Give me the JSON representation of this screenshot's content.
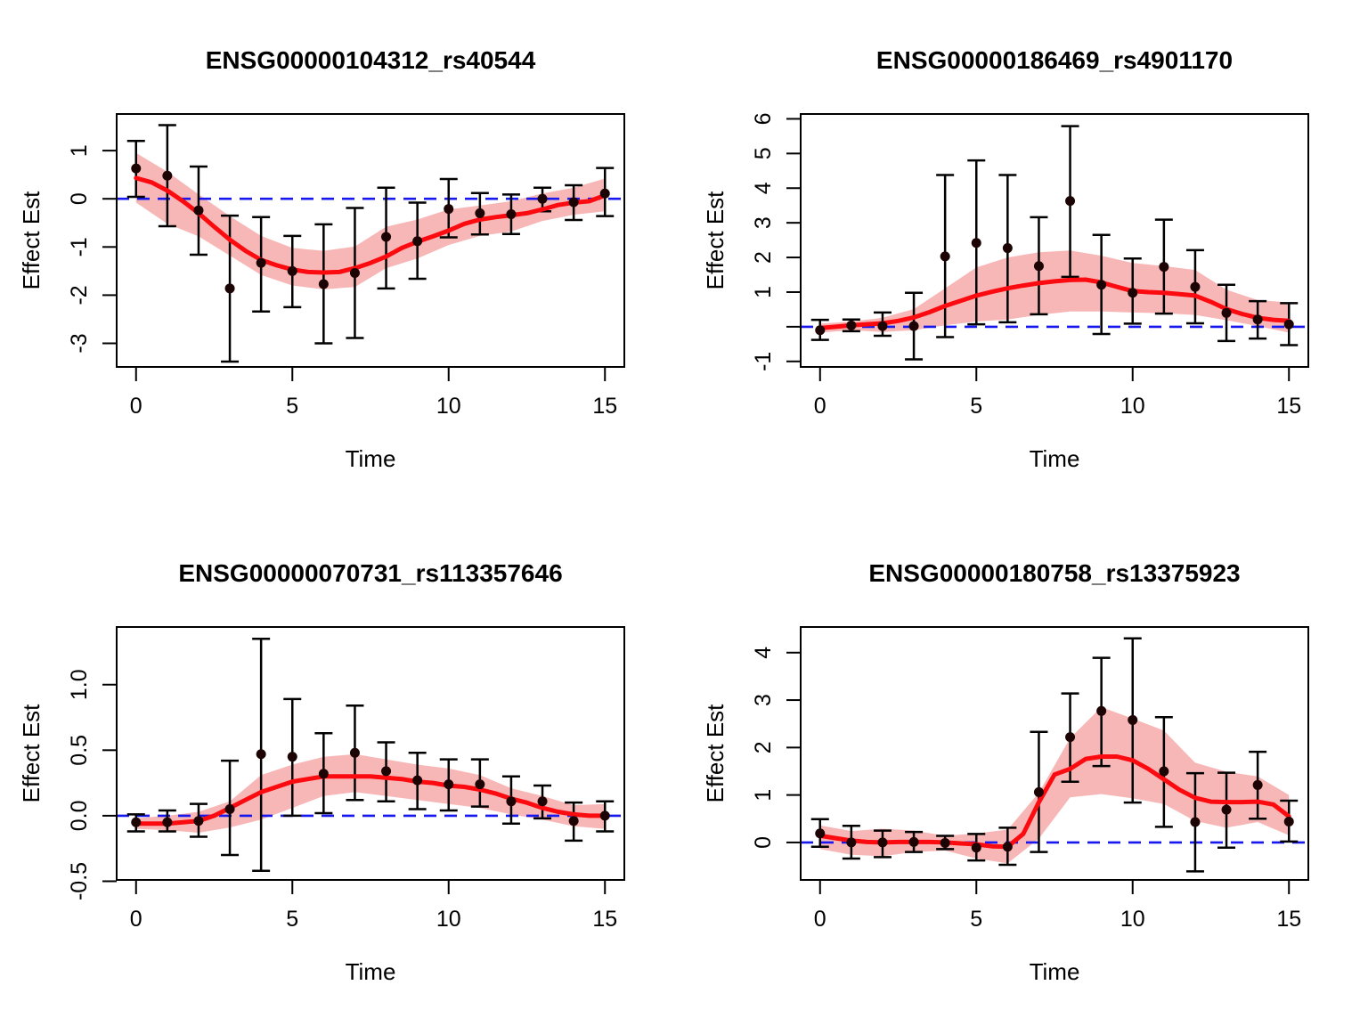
{
  "figure": {
    "background": "#FFFFFF",
    "layout": "2x2 panel grid of effect-estimate time-course plots",
    "shared_xlabel": "Time",
    "shared_ylabel": "Effect Est",
    "colors": {
      "smooth_line": "#FB0A10",
      "confidence_band": "#F8B7B7",
      "zero_reference_line": "#1717EF",
      "points": "#1D0404",
      "error_bars": "#000000",
      "frame": "#000000",
      "text": "#000000"
    }
  },
  "chart_data": [
    {
      "type": "line",
      "title": "ENSG00000104312_rs40544",
      "xlabel": "Time",
      "ylabel": "Effect Est",
      "legend_position": "none",
      "grid": false,
      "x": [
        0,
        1,
        2,
        3,
        4,
        5,
        6,
        7,
        8,
        9,
        10,
        11,
        12,
        13,
        14,
        15
      ],
      "estimates": [
        0.63,
        0.48,
        -0.24,
        -1.86,
        -1.33,
        -1.5,
        -1.77,
        -1.54,
        -0.79,
        -0.88,
        -0.21,
        -0.3,
        -0.32,
        0.0,
        -0.07,
        0.11
      ],
      "ci_lower": [
        0.04,
        -0.57,
        -1.16,
        -3.38,
        -2.34,
        -2.25,
        -3.0,
        -2.89,
        -1.86,
        -1.66,
        -0.8,
        -0.74,
        -0.73,
        -0.26,
        -0.44,
        -0.36
      ],
      "ci_upper": [
        1.2,
        1.53,
        0.67,
        -0.35,
        -0.38,
        -0.77,
        -0.53,
        -0.19,
        0.23,
        -0.08,
        0.41,
        0.12,
        0.09,
        0.23,
        0.28,
        0.64
      ],
      "band_upper": [
        0.95,
        0.56,
        0.09,
        -0.36,
        -0.77,
        -1.02,
        -1.08,
        -0.99,
        -0.58,
        -0.43,
        -0.22,
        -0.14,
        -0.05,
        0.11,
        0.23,
        0.42
      ],
      "band_lower": [
        -0.08,
        -0.52,
        -0.78,
        -1.18,
        -1.58,
        -1.8,
        -1.88,
        -1.83,
        -1.44,
        -1.24,
        -0.96,
        -0.77,
        -0.68,
        -0.46,
        -0.33,
        -0.26
      ],
      "smooth_step": 0.5,
      "smooth_y": [
        0.43,
        0.34,
        0.17,
        -0.05,
        -0.3,
        -0.58,
        -0.85,
        -1.08,
        -1.27,
        -1.38,
        -1.47,
        -1.52,
        -1.53,
        -1.52,
        -1.44,
        -1.33,
        -1.2,
        -1.02,
        -0.89,
        -0.78,
        -0.66,
        -0.52,
        -0.43,
        -0.38,
        -0.34,
        -0.3,
        -0.22,
        -0.13,
        -0.08,
        -0.05,
        0.07
      ],
      "xlim": [
        -0.62,
        15.62
      ],
      "ylim": [
        -3.49,
        1.76
      ],
      "x_ticks": [
        0,
        5,
        10,
        15
      ],
      "x_tick_labels": [
        "0",
        "5",
        "10",
        "15"
      ],
      "y_ticks": [
        -3,
        -2,
        -1,
        0,
        1
      ],
      "y_tick_labels": [
        "-3",
        "-2",
        "-1",
        "0",
        "1"
      ],
      "zero_line_y": 0
    },
    {
      "type": "line",
      "title": "ENSG00000186469_rs4901170",
      "xlabel": "Time",
      "ylabel": "Effect Est",
      "legend_position": "none",
      "grid": false,
      "x": [
        0,
        1,
        2,
        3,
        4,
        5,
        6,
        7,
        8,
        9,
        10,
        11,
        12,
        13,
        14,
        15
      ],
      "estimates": [
        -0.1,
        0.04,
        0.02,
        0.02,
        2.03,
        2.42,
        2.27,
        1.75,
        3.63,
        1.21,
        0.98,
        1.73,
        1.15,
        0.4,
        0.21,
        0.07
      ],
      "ci_lower": [
        -0.38,
        -0.13,
        -0.26,
        -0.94,
        -0.3,
        0.07,
        0.13,
        0.36,
        1.44,
        -0.21,
        0.09,
        0.38,
        0.1,
        -0.41,
        -0.34,
        -0.53
      ],
      "ci_upper": [
        0.2,
        0.21,
        0.41,
        0.98,
        4.38,
        4.8,
        4.38,
        3.16,
        5.79,
        2.65,
        1.97,
        3.09,
        2.21,
        1.21,
        0.74,
        0.68
      ],
      "band_upper": [
        0.09,
        0.15,
        0.26,
        0.51,
        1.11,
        1.71,
        2.0,
        2.15,
        2.2,
        2.05,
        1.84,
        1.75,
        1.64,
        1.07,
        0.77,
        0.7
      ],
      "band_lower": [
        -0.17,
        -0.1,
        -0.15,
        -0.1,
        0.04,
        0.15,
        0.21,
        0.34,
        0.44,
        0.44,
        0.41,
        0.39,
        0.34,
        0.19,
        0.02,
        -0.17
      ],
      "smooth_step": 0.5,
      "smooth_y": [
        -0.04,
        0.0,
        0.04,
        0.07,
        0.1,
        0.17,
        0.27,
        0.42,
        0.6,
        0.75,
        0.9,
        1.01,
        1.11,
        1.19,
        1.26,
        1.31,
        1.35,
        1.36,
        1.28,
        1.15,
        1.03,
        1.0,
        0.98,
        0.94,
        0.9,
        0.72,
        0.51,
        0.37,
        0.26,
        0.2,
        0.17
      ],
      "xlim": [
        -0.62,
        15.62
      ],
      "ylim": [
        -1.16,
        6.14
      ],
      "x_ticks": [
        0,
        5,
        10,
        15
      ],
      "x_tick_labels": [
        "0",
        "5",
        "10",
        "15"
      ],
      "y_ticks": [
        -1,
        0,
        1,
        2,
        3,
        4,
        5,
        6
      ],
      "y_tick_labels": [
        "-1",
        "",
        "1",
        "2",
        "3",
        "4",
        "5",
        "6"
      ],
      "zero_line_y": 0
    },
    {
      "type": "line",
      "title": "ENSG00000070731_rs113357646",
      "xlabel": "Time",
      "ylabel": "Effect Est",
      "legend_position": "none",
      "grid": false,
      "x": [
        0,
        1,
        2,
        3,
        4,
        5,
        6,
        7,
        8,
        9,
        10,
        11,
        12,
        13,
        14,
        15
      ],
      "estimates": [
        -0.05,
        -0.05,
        -0.04,
        0.05,
        0.47,
        0.45,
        0.32,
        0.48,
        0.34,
        0.27,
        0.24,
        0.24,
        0.11,
        0.11,
        -0.04,
        0.0
      ],
      "ci_lower": [
        -0.12,
        -0.12,
        -0.16,
        -0.3,
        -0.42,
        0.0,
        0.02,
        0.12,
        0.11,
        0.05,
        0.04,
        0.07,
        -0.06,
        -0.02,
        -0.19,
        -0.12
      ],
      "ci_upper": [
        0.01,
        0.04,
        0.09,
        0.42,
        1.35,
        0.89,
        0.63,
        0.84,
        0.56,
        0.48,
        0.43,
        0.43,
        0.3,
        0.23,
        0.1,
        0.11
      ],
      "band_upper": [
        -0.02,
        0.0,
        0.03,
        0.11,
        0.31,
        0.39,
        0.45,
        0.47,
        0.43,
        0.39,
        0.36,
        0.31,
        0.21,
        0.15,
        0.08,
        0.09
      ],
      "band_lower": [
        -0.1,
        -0.11,
        -0.13,
        -0.09,
        -0.03,
        0.06,
        0.15,
        0.18,
        0.15,
        0.12,
        0.09,
        0.06,
        0.01,
        -0.03,
        -0.08,
        -0.1
      ],
      "smooth_step": 0.5,
      "smooth_y": [
        -0.06,
        -0.06,
        -0.06,
        -0.05,
        -0.04,
        0.0,
        0.06,
        0.12,
        0.18,
        0.22,
        0.26,
        0.28,
        0.3,
        0.3,
        0.3,
        0.3,
        0.29,
        0.28,
        0.26,
        0.25,
        0.23,
        0.22,
        0.2,
        0.17,
        0.13,
        0.1,
        0.06,
        0.03,
        0.01,
        0.0,
        0.0
      ],
      "xlim": [
        -0.62,
        15.62
      ],
      "ylim": [
        -0.49,
        1.44
      ],
      "x_ticks": [
        0,
        5,
        10,
        15
      ],
      "x_tick_labels": [
        "0",
        "5",
        "10",
        "15"
      ],
      "y_ticks": [
        -0.5,
        0.0,
        0.5,
        1.0
      ],
      "y_tick_labels": [
        "-0.5",
        "0.0",
        "0.5",
        "1.0"
      ],
      "zero_line_y": 0
    },
    {
      "type": "line",
      "title": "ENSG00000180758_rs13375923",
      "xlabel": "Time",
      "ylabel": "Effect Est",
      "legend_position": "none",
      "grid": false,
      "x": [
        0,
        1,
        2,
        3,
        4,
        5,
        6,
        7,
        8,
        9,
        10,
        11,
        12,
        13,
        14,
        15
      ],
      "estimates": [
        0.19,
        0.0,
        0.0,
        0.01,
        -0.01,
        -0.11,
        -0.09,
        1.06,
        2.22,
        2.77,
        2.58,
        1.5,
        0.43,
        0.69,
        1.21,
        0.44
      ],
      "ci_lower": [
        -0.09,
        -0.34,
        -0.31,
        -0.2,
        -0.14,
        -0.38,
        -0.47,
        -0.2,
        1.28,
        1.61,
        0.84,
        0.33,
        -0.61,
        -0.11,
        0.5,
        0.02
      ],
      "ci_upper": [
        0.49,
        0.35,
        0.25,
        0.22,
        0.14,
        0.18,
        0.31,
        2.33,
        3.14,
        3.89,
        4.3,
        2.64,
        1.46,
        1.47,
        1.91,
        0.88
      ],
      "band_upper": [
        0.36,
        0.24,
        0.29,
        0.25,
        0.14,
        0.19,
        0.27,
        1.05,
        2.2,
        2.85,
        2.61,
        2.36,
        1.68,
        1.49,
        1.39,
        1.0
      ],
      "band_lower": [
        -0.14,
        -0.26,
        -0.29,
        -0.2,
        -0.17,
        -0.34,
        -0.44,
        0.08,
        0.95,
        1.02,
        0.93,
        0.81,
        0.45,
        0.31,
        0.43,
        0.15
      ],
      "smooth_step": 0.5,
      "smooth_y": [
        0.14,
        0.09,
        0.04,
        0.01,
        0.0,
        0.01,
        0.01,
        0.01,
        0.0,
        -0.02,
        -0.04,
        -0.08,
        -0.09,
        0.18,
        0.85,
        1.43,
        1.55,
        1.76,
        1.81,
        1.81,
        1.73,
        1.55,
        1.33,
        1.11,
        0.94,
        0.86,
        0.85,
        0.85,
        0.86,
        0.8,
        0.55
      ],
      "xlim": [
        -0.62,
        15.62
      ],
      "ylim": [
        -0.79,
        4.54
      ],
      "x_ticks": [
        0,
        5,
        10,
        15
      ],
      "x_tick_labels": [
        "0",
        "5",
        "10",
        "15"
      ],
      "y_ticks": [
        0,
        1,
        2,
        3,
        4
      ],
      "y_tick_labels": [
        "0",
        "1",
        "2",
        "3",
        "4"
      ],
      "zero_line_y": 0
    }
  ]
}
